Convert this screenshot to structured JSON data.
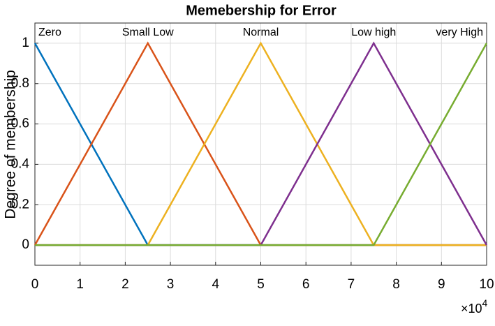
{
  "chart_data": {
    "type": "line",
    "title": "Memebership for Error",
    "ylabel": "Degree of membership",
    "x_multiplier": {
      "base": "×10",
      "exponent": "4"
    },
    "xlim": [
      0,
      10
    ],
    "xticks": [
      0,
      1,
      2,
      3,
      4,
      5,
      6,
      7,
      8,
      9,
      10
    ],
    "ylim": [
      -0.1,
      1.1
    ],
    "yticks": [
      0,
      0.2,
      0.4,
      0.6,
      0.8,
      1
    ],
    "grid": true,
    "series": [
      {
        "name": "Zero",
        "color": "#0072BD",
        "x": [
          0,
          2.5,
          10
        ],
        "values": [
          1,
          0,
          0
        ]
      },
      {
        "name": "Small Low",
        "color": "#D95319",
        "x": [
          0,
          2.5,
          5,
          10
        ],
        "values": [
          0,
          1,
          0,
          0
        ]
      },
      {
        "name": "Normal",
        "color": "#EDB120",
        "x": [
          0,
          2.5,
          5,
          7.5,
          10
        ],
        "values": [
          0,
          0,
          1,
          0,
          0
        ]
      },
      {
        "name": "Low high",
        "color": "#7E2F8E",
        "x": [
          0,
          5,
          7.5,
          10
        ],
        "values": [
          0,
          0,
          1,
          0
        ]
      },
      {
        "name": "very High",
        "color": "#77AC30",
        "x": [
          0,
          7.5,
          10
        ],
        "values": [
          0,
          0,
          1
        ]
      }
    ]
  }
}
